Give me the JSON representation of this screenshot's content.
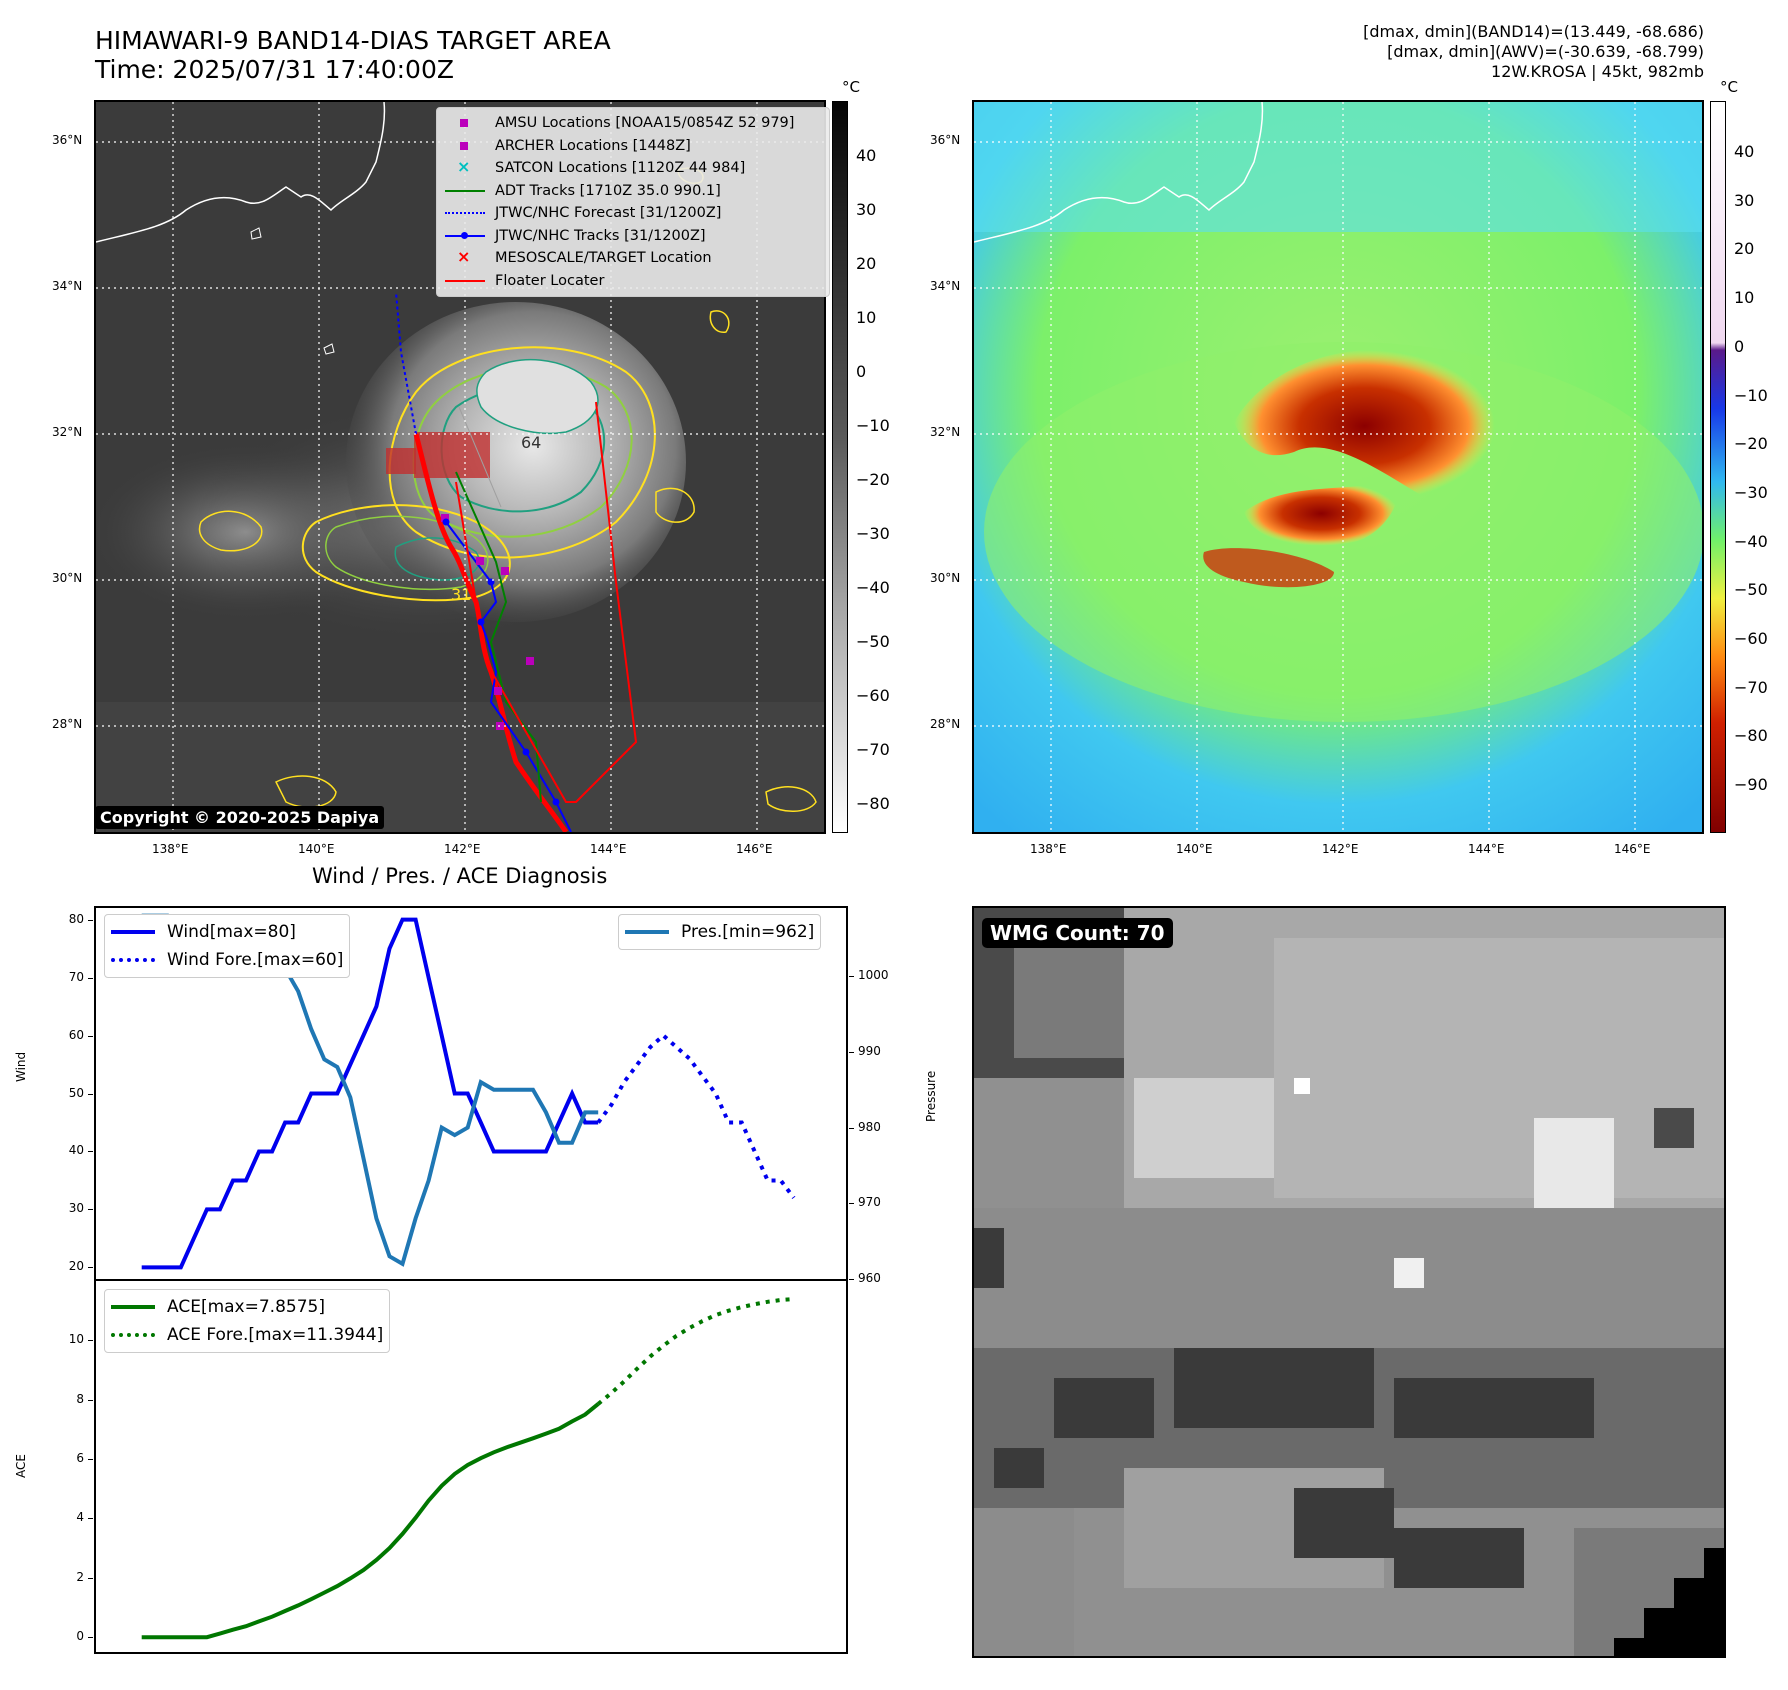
{
  "header": {
    "title_line1": "HIMAWARI-9 BAND14-DIAS TARGET AREA",
    "title_line2": "Time: 2025/07/31 17:40:00Z",
    "info_line1": "[dmax, dmin](BAND14)=(13.449, -68.686)",
    "info_line2": "[dmax, dmin](AWV)=(-30.639, -68.799)",
    "info_line3": "12W.KROSA | 45kt, 982mb"
  },
  "map_axes": {
    "lat_ticks": [
      "36°N",
      "34°N",
      "32°N",
      "30°N",
      "28°N"
    ],
    "lon_ticks": [
      "138°E",
      "140°E",
      "142°E",
      "144°E",
      "146°E"
    ]
  },
  "ir_panel": {
    "colorbar_unit": "°C",
    "colorbar_ticks": [
      "40",
      "30",
      "20",
      "10",
      "0",
      "−10",
      "−20",
      "−30",
      "−40",
      "−50",
      "−60",
      "−70",
      "−80"
    ],
    "copyright": "Copyright © 2020-2025 Dapiya",
    "legend": [
      {
        "label": "AMSU Locations [NOAA15/0854Z 52 979]",
        "icon": "magenta-square",
        "color": "#bb00bb"
      },
      {
        "label": "ARCHER Locations [1448Z]",
        "icon": "magenta-square",
        "color": "#bb00bb"
      },
      {
        "label": "SATCON Locations [1120Z 44 984]",
        "icon": "cyan-x",
        "color": "#00c0c0"
      },
      {
        "label": "ADT Tracks [1710Z 35.0 990.1]",
        "icon": "green-line",
        "color": "#008000"
      },
      {
        "label": "JTWC/NHC Forecast [31/1200Z]",
        "icon": "blue-dotted-line",
        "color": "#0000ff"
      },
      {
        "label": "JTWC/NHC Tracks [31/1200Z]",
        "icon": "blue-line-dot",
        "color": "#0000ff"
      },
      {
        "label": "MESOSCALE/TARGET Location",
        "icon": "red-x",
        "color": "#ff0000"
      },
      {
        "label": "Floater Locater",
        "icon": "red-line",
        "color": "#ff0000"
      }
    ],
    "contour_labels": [
      "64",
      "31"
    ]
  },
  "awv_panel": {
    "colorbar_unit": "°C",
    "colorbar_ticks": [
      "40",
      "30",
      "20",
      "10",
      "0",
      "−10",
      "−20",
      "−30",
      "−40",
      "−50",
      "−60",
      "−70",
      "−80",
      "−90"
    ]
  },
  "wmg_panel": {
    "badge": "WMG Count: 70"
  },
  "colors": {
    "wind": "#0000ee",
    "pressure": "#1f77b4",
    "ace": "#007700"
  },
  "chart_data": [
    {
      "type": "line",
      "title": "Wind / Pres. / ACE Diagnosis",
      "ylabel": "Wind",
      "ylim": [
        18,
        82
      ],
      "yticks": [
        "80",
        "70",
        "60",
        "50",
        "40",
        "30",
        "20"
      ],
      "series": [
        {
          "name": "Wind[max=80]",
          "style": "solid",
          "x": [
            0,
            1,
            2,
            3,
            4,
            5,
            6,
            7,
            8,
            9,
            10,
            11,
            12,
            13,
            14,
            15,
            16,
            17,
            18,
            19,
            20,
            21,
            22,
            23,
            24,
            25,
            26,
            27,
            28,
            29,
            30,
            31,
            32,
            33,
            34,
            35
          ],
          "values": [
            20,
            20,
            20,
            20,
            25,
            30,
            30,
            35,
            35,
            40,
            40,
            45,
            45,
            50,
            50,
            50,
            55,
            60,
            65,
            75,
            80,
            80,
            70,
            60,
            50,
            50,
            45,
            40,
            40,
            40,
            40,
            40,
            45,
            50,
            45,
            45
          ]
        },
        {
          "name": "Wind Fore.[max=60]",
          "style": "dotted",
          "x": [
            35,
            36,
            37,
            38,
            39,
            40,
            41,
            42,
            43,
            44,
            45,
            46,
            47,
            48,
            49,
            50
          ],
          "values": [
            45,
            48,
            52,
            55,
            58,
            60,
            58,
            56,
            53,
            50,
            45,
            45,
            40,
            35,
            35,
            32
          ]
        }
      ]
    },
    {
      "type": "line",
      "ylabel": "Pressure",
      "ylim": [
        960,
        1009
      ],
      "yticks": [
        "1000",
        "990",
        "980",
        "970",
        "960"
      ],
      "series": [
        {
          "name": "Pres.[min=962]",
          "style": "solid",
          "x": [
            0,
            1,
            2,
            3,
            4,
            5,
            6,
            7,
            8,
            9,
            10,
            11,
            12,
            13,
            14,
            15,
            16,
            17,
            18,
            19,
            20,
            21,
            22,
            23,
            24,
            25,
            26,
            27,
            28,
            29,
            30,
            31,
            32,
            33,
            34,
            35
          ],
          "values": [
            1008,
            1008,
            1008,
            1006,
            1006,
            1005,
            1005,
            1003,
            1003,
            1001,
            1001,
            1001,
            998,
            993,
            989,
            988,
            984,
            976,
            968,
            963,
            962,
            968,
            973,
            980,
            979,
            980,
            986,
            985,
            985,
            985,
            985,
            982,
            978,
            978,
            982,
            982
          ]
        }
      ]
    },
    {
      "type": "line",
      "ylabel": "ACE",
      "ylim": [
        -0.5,
        12
      ],
      "yticks": [
        "10",
        "8",
        "6",
        "4",
        "2",
        "0"
      ],
      "series": [
        {
          "name": "ACE[max=7.8575]",
          "style": "solid",
          "x": [
            0,
            1,
            2,
            3,
            4,
            5,
            6,
            7,
            8,
            9,
            10,
            11,
            12,
            13,
            14,
            15,
            16,
            17,
            18,
            19,
            20,
            21,
            22,
            23,
            24,
            25,
            26,
            27,
            28,
            29,
            30,
            31,
            32,
            33,
            34,
            35
          ],
          "values": [
            0,
            0,
            0,
            0,
            0,
            0,
            0.12,
            0.25,
            0.37,
            0.53,
            0.69,
            0.88,
            1.07,
            1.28,
            1.5,
            1.72,
            1.98,
            2.26,
            2.6,
            3.0,
            3.48,
            4.02,
            4.6,
            5.1,
            5.5,
            5.8,
            6.03,
            6.23,
            6.4,
            6.55,
            6.7,
            6.86,
            7.02,
            7.27,
            7.5,
            7.86
          ]
        },
        {
          "name": "ACE Fore.[max=11.3944]",
          "style": "dotted",
          "x": [
            35,
            36,
            37,
            38,
            39,
            40,
            41,
            42,
            43,
            44,
            45,
            46,
            47,
            48,
            49,
            50
          ],
          "values": [
            7.86,
            8.22,
            8.62,
            9.05,
            9.46,
            9.82,
            10.15,
            10.42,
            10.65,
            10.85,
            11.0,
            11.12,
            11.22,
            11.3,
            11.36,
            11.39
          ]
        }
      ]
    }
  ]
}
